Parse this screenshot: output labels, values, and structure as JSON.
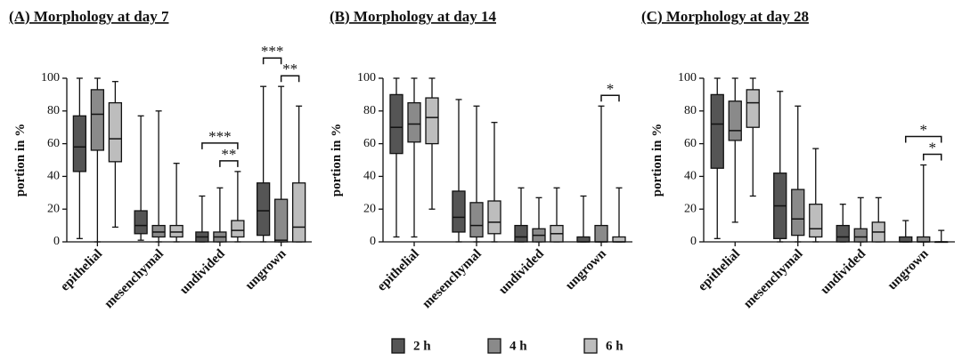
{
  "legend": {
    "position": "bottom",
    "entries": [
      {
        "name": "2 h",
        "color": "#555555"
      },
      {
        "name": "4 h",
        "color": "#8a8a8a"
      },
      {
        "name": "6 h",
        "color": "#bdbdbd"
      }
    ]
  },
  "chart_data": [
    {
      "type": "box",
      "title": "(A) Morphology at day 7",
      "y_label": "portion in %",
      "categories": [
        "epithelial",
        "mesenchymal",
        "undivided",
        "ungrown"
      ],
      "ylim": [
        0,
        100
      ],
      "yticks": [
        0,
        20,
        40,
        60,
        80,
        100
      ],
      "series": [
        {
          "values": [
            {
              "min": 2,
              "q1": 43,
              "median": 58,
              "q3": 77,
              "max": 100
            },
            {
              "min": 1,
              "q1": 5,
              "median": 10,
              "q3": 19,
              "max": 77
            },
            {
              "min": 0,
              "q1": 0,
              "median": 3,
              "q3": 6,
              "max": 28
            },
            {
              "min": 0,
              "q1": 4,
              "median": 19,
              "q3": 36,
              "max": 95
            }
          ]
        },
        {
          "values": [
            {
              "min": 0,
              "q1": 56,
              "median": 78,
              "q3": 93,
              "max": 100
            },
            {
              "min": 0,
              "q1": 3,
              "median": 6,
              "q3": 10,
              "max": 80
            },
            {
              "min": 0,
              "q1": 0,
              "median": 3,
              "q3": 6,
              "max": 33
            },
            {
              "min": 0,
              "q1": 0,
              "median": 1,
              "q3": 26,
              "max": 95
            }
          ]
        },
        {
          "values": [
            {
              "min": 9,
              "q1": 49,
              "median": 63,
              "q3": 85,
              "max": 98
            },
            {
              "min": 0,
              "q1": 3,
              "median": 6,
              "q3": 10,
              "max": 48
            },
            {
              "min": 0,
              "q1": 3,
              "median": 7,
              "q3": 13,
              "max": 43
            },
            {
              "min": 0,
              "q1": 0,
              "median": 9,
              "q3": 36,
              "max": 83
            }
          ]
        }
      ],
      "annotations": [
        {
          "category": 2,
          "from": 1,
          "to": 2,
          "text": "**"
        },
        {
          "category": 2,
          "from": 0,
          "to": 2,
          "text": "***"
        },
        {
          "category": 3,
          "from": 1,
          "to": 2,
          "text": "**"
        },
        {
          "category": 3,
          "from": 0,
          "to": 1,
          "text": "***"
        }
      ]
    },
    {
      "type": "box",
      "title": "(B) Morphology at day 14",
      "y_label": "portion in %",
      "categories": [
        "epithelial",
        "mesenchymal",
        "undivided",
        "ungrown"
      ],
      "ylim": [
        0,
        100
      ],
      "yticks": [
        0,
        20,
        40,
        60,
        80,
        100
      ],
      "series": [
        {
          "values": [
            {
              "min": 3,
              "q1": 54,
              "median": 70,
              "q3": 90,
              "max": 100
            },
            {
              "min": 0,
              "q1": 6,
              "median": 15,
              "q3": 31,
              "max": 87
            },
            {
              "min": 0,
              "q1": 0,
              "median": 3,
              "q3": 10,
              "max": 33
            },
            {
              "min": 0,
              "q1": 0,
              "median": 0,
              "q3": 3,
              "max": 28
            }
          ]
        },
        {
          "values": [
            {
              "min": 3,
              "q1": 61,
              "median": 72,
              "q3": 85,
              "max": 100
            },
            {
              "min": 0,
              "q1": 3,
              "median": 10,
              "q3": 24,
              "max": 83
            },
            {
              "min": 0,
              "q1": 0,
              "median": 4,
              "q3": 8,
              "max": 27
            },
            {
              "min": 0,
              "q1": 0,
              "median": 0,
              "q3": 10,
              "max": 83
            }
          ]
        },
        {
          "values": [
            {
              "min": 20,
              "q1": 60,
              "median": 76,
              "q3": 88,
              "max": 100
            },
            {
              "min": 0,
              "q1": 5,
              "median": 12,
              "q3": 25,
              "max": 73
            },
            {
              "min": 0,
              "q1": 0,
              "median": 5,
              "q3": 10,
              "max": 33
            },
            {
              "min": 0,
              "q1": 0,
              "median": 0,
              "q3": 3,
              "max": 33
            }
          ]
        }
      ],
      "annotations": [
        {
          "category": 3,
          "from": 1,
          "to": 2,
          "text": "*"
        }
      ]
    },
    {
      "type": "box",
      "title": "(C) Morphology at day 28",
      "y_label": "portion in %",
      "categories": [
        "epithelial",
        "mesenchymal",
        "undivided",
        "ungrown"
      ],
      "ylim": [
        0,
        100
      ],
      "yticks": [
        0,
        20,
        40,
        60,
        80,
        100
      ],
      "series": [
        {
          "values": [
            {
              "min": 2,
              "q1": 45,
              "median": 72,
              "q3": 90,
              "max": 100
            },
            {
              "min": 0,
              "q1": 2,
              "median": 22,
              "q3": 42,
              "max": 92
            },
            {
              "min": 0,
              "q1": 0,
              "median": 3,
              "q3": 10,
              "max": 23
            },
            {
              "min": 0,
              "q1": 0,
              "median": 0,
              "q3": 3,
              "max": 13
            }
          ]
        },
        {
          "values": [
            {
              "min": 12,
              "q1": 62,
              "median": 68,
              "q3": 86,
              "max": 100
            },
            {
              "min": 0,
              "q1": 4,
              "median": 14,
              "q3": 32,
              "max": 83
            },
            {
              "min": 0,
              "q1": 0,
              "median": 3,
              "q3": 8,
              "max": 27
            },
            {
              "min": 0,
              "q1": 0,
              "median": 0,
              "q3": 3,
              "max": 47
            }
          ]
        },
        {
          "values": [
            {
              "min": 28,
              "q1": 70,
              "median": 85,
              "q3": 93,
              "max": 100
            },
            {
              "min": 0,
              "q1": 3,
              "median": 8,
              "q3": 23,
              "max": 57
            },
            {
              "min": 0,
              "q1": 0,
              "median": 6,
              "q3": 12,
              "max": 27
            },
            {
              "min": 0,
              "q1": 0,
              "median": 0,
              "q3": 0,
              "max": 7
            }
          ]
        }
      ],
      "annotations": [
        {
          "category": 3,
          "from": 1,
          "to": 2,
          "text": "*"
        },
        {
          "category": 3,
          "from": 0,
          "to": 2,
          "text": "*"
        }
      ]
    }
  ]
}
